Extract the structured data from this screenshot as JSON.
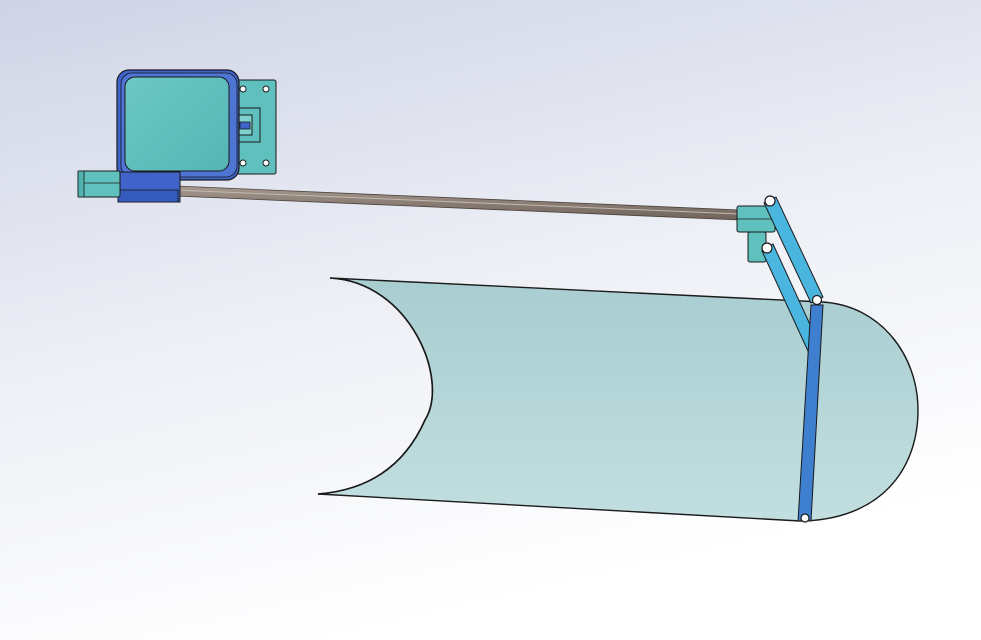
{
  "scene": {
    "background_top": "#d6daea",
    "background_bottom": "#ffffff",
    "outline_color": "#1a1a1a"
  },
  "parts": {
    "motor_housing": {
      "icon": "servo-motor-icon",
      "face_color": "#5fc0bd",
      "frame_color": "#3f63c8"
    },
    "mount_bracket": {
      "icon": "mount-bracket-icon",
      "color": "#3f63c8"
    },
    "drive_rod": {
      "icon": "drive-rod-icon",
      "color": "#8a7d74"
    },
    "rod_coupler": {
      "icon": "coupler-icon",
      "color": "#5fc0bd"
    },
    "linkage_arms": {
      "icon": "linkage-arm-icon",
      "color": "#4ab6e0"
    },
    "vertical_link": {
      "icon": "link-bar-icon",
      "color": "#3f7fd0"
    },
    "flap_surface": {
      "icon": "curved-flap-icon",
      "color": "#b4d6d8"
    }
  }
}
